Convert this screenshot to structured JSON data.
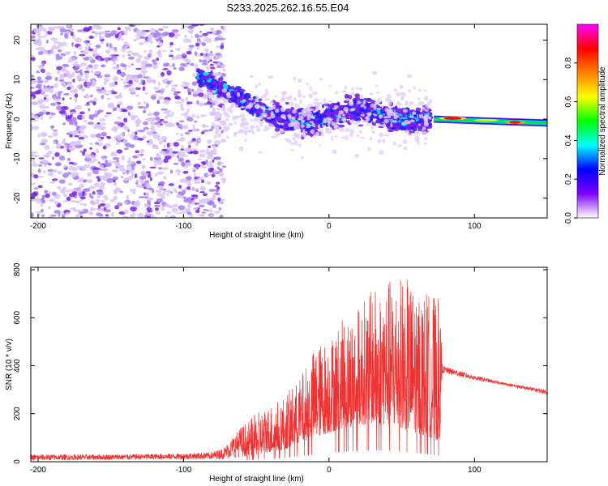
{
  "title": "S233.2025.262.16.55.E04",
  "chart_data": [
    {
      "type": "heatmap",
      "name": "spectrogram",
      "xlabel": "Height of straight line (km)",
      "ylabel": "Frequency (Hz)",
      "xlim": [
        -205,
        150
      ],
      "ylim": [
        -25,
        24
      ],
      "xticks": [
        -200,
        -100,
        0,
        100
      ],
      "yticks": [
        -20,
        -10,
        0,
        10,
        20
      ],
      "colorbar": {
        "label": "Normalized spectral amplitude",
        "range": [
          0,
          1
        ],
        "ticks": [
          0.0,
          0.2,
          0.4,
          0.6,
          0.8
        ],
        "tick_labels": [
          "0.0",
          "0.2",
          "0.4",
          "0.6",
          "0.8"
        ],
        "colormap": [
          "#ffffff",
          "#7f00ff",
          "#0000ff",
          "#00ffff",
          "#00ff00",
          "#ffff00",
          "#ff7f00",
          "#ff0000",
          "#ff00ff"
        ]
      },
      "regions": [
        {
          "desc": "broadband noise",
          "x": [
            -205,
            -72
          ],
          "freq": [
            -25,
            24
          ],
          "amplitude": 0.1
        },
        {
          "desc": "descending band",
          "x": [
            -90,
            -40
          ],
          "center_freq_start": 11,
          "center_freq_end": 1,
          "amplitude": 0.2
        },
        {
          "desc": "noisy band",
          "x": [
            -40,
            70
          ],
          "center_freq": 1,
          "width": 5,
          "amplitude": 0.2
        },
        {
          "desc": "narrow tone",
          "x": [
            72,
            150
          ],
          "center_freq_start": 0,
          "center_freq_end": -1,
          "peak_amplitude": 0.95
        }
      ]
    },
    {
      "type": "line",
      "name": "snr",
      "xlabel": "Height of straight line (km)",
      "ylabel": "SNR (10 * v/v)",
      "xlim": [
        -205,
        150
      ],
      "ylim": [
        0,
        810
      ],
      "xticks": [
        -200,
        -100,
        0,
        100
      ],
      "yticks": [
        0,
        200,
        400,
        600,
        800
      ],
      "color": "#f03232",
      "envelope": {
        "x": [
          -205,
          -150,
          -100,
          -80,
          -72,
          -60,
          -50,
          -30,
          -20,
          -10,
          0,
          10,
          20,
          30,
          40,
          50,
          60,
          70,
          76,
          78,
          100,
          120,
          150
        ],
        "low": [
          5,
          8,
          10,
          10,
          12,
          20,
          30,
          50,
          80,
          100,
          120,
          140,
          150,
          160,
          150,
          140,
          120,
          100,
          80,
          370,
          340,
          320,
          280
        ],
        "high": [
          30,
          30,
          35,
          40,
          60,
          150,
          200,
          280,
          350,
          480,
          520,
          600,
          650,
          720,
          760,
          780,
          730,
          700,
          680,
          400,
          360,
          330,
          300
        ]
      }
    }
  ]
}
